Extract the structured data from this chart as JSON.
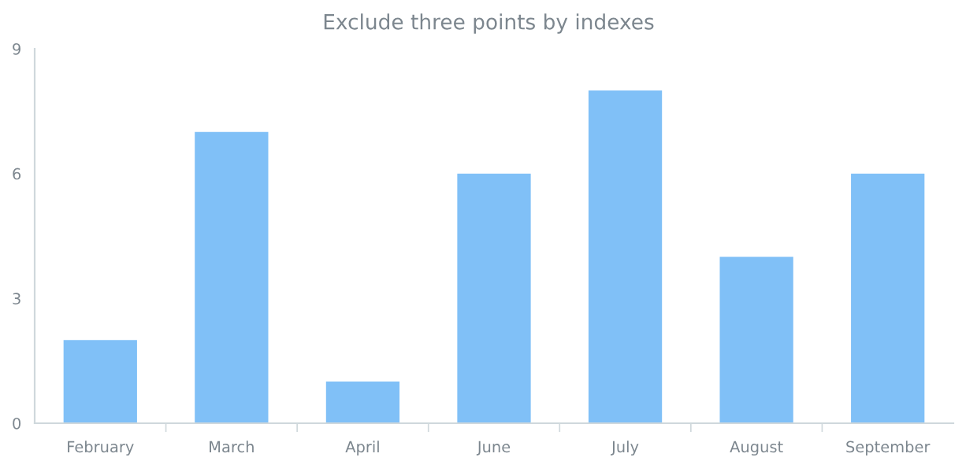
{
  "chart_data": {
    "type": "bar",
    "title": "Exclude three points by indexes",
    "categories": [
      "February",
      "March",
      "April",
      "June",
      "July",
      "August",
      "September"
    ],
    "values": [
      2,
      7,
      1,
      6,
      8,
      4,
      6
    ],
    "color": "#80c0f7",
    "ylim": [
      0,
      9
    ],
    "yticks": [
      0,
      3,
      6,
      9
    ],
    "grid": false
  }
}
